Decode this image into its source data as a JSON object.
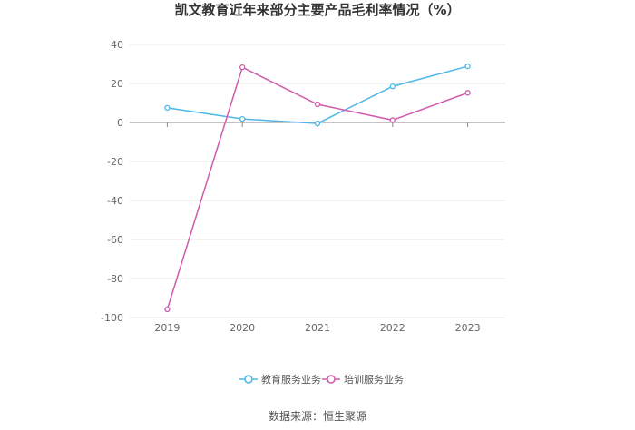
{
  "title": "凯文教育近年来部分主要产品毛利率情况（%）",
  "source": "数据来源：恒生聚源",
  "chart_data": {
    "type": "line",
    "title": "凯文教育近年来部分主要产品毛利率情况（%）",
    "x": [
      "2019",
      "2020",
      "2021",
      "2022",
      "2023"
    ],
    "ylim": [
      -100,
      40
    ],
    "yticks": [
      40,
      20,
      0,
      -20,
      -40,
      -60,
      -80,
      -100
    ],
    "grid": true,
    "legend_position": "bottom",
    "series": [
      {
        "name": "教育服务业务",
        "color": "#4db6e8",
        "values": [
          7.5,
          1.8,
          -0.5,
          18.5,
          28.8
        ]
      },
      {
        "name": "培训服务业务",
        "color": "#d05aad",
        "values": [
          -95.8,
          28.3,
          9.3,
          1.2,
          15.2
        ]
      }
    ]
  }
}
